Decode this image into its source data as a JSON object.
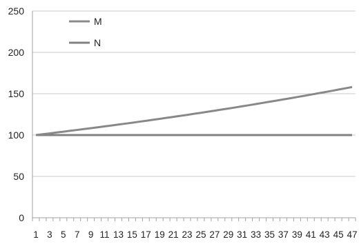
{
  "chart_data": {
    "type": "line",
    "title": "",
    "xlabel": "",
    "ylabel": "",
    "ylim": [
      0,
      250
    ],
    "y_ticks": [
      0,
      50,
      100,
      150,
      200,
      250
    ],
    "x_tick_labels": [
      "1",
      "3",
      "5",
      "7",
      "9",
      "11",
      "13",
      "15",
      "17",
      "19",
      "21",
      "23",
      "25",
      "27",
      "29",
      "31",
      "33",
      "35",
      "37",
      "39",
      "41",
      "43",
      "45",
      "47"
    ],
    "x": [
      1,
      2,
      3,
      4,
      5,
      6,
      7,
      8,
      9,
      10,
      11,
      12,
      13,
      14,
      15,
      16,
      17,
      18,
      19,
      20,
      21,
      22,
      23,
      24,
      25,
      26,
      27,
      28,
      29,
      30,
      31,
      32,
      33,
      34,
      35,
      36,
      37,
      38,
      39,
      40,
      41,
      42,
      43,
      44,
      45,
      46,
      47
    ],
    "grid": "horizontal",
    "legend_position": "top-left",
    "series": [
      {
        "name": "M",
        "color": "#888888",
        "values": [
          100.0,
          101.0,
          102.0,
          103.1,
          104.1,
          105.2,
          106.2,
          107.3,
          108.3,
          109.4,
          110.5,
          111.6,
          112.7,
          113.8,
          114.9,
          116.1,
          117.2,
          118.4,
          119.6,
          120.8,
          122.0,
          123.2,
          124.4,
          125.7,
          126.9,
          128.2,
          129.5,
          130.8,
          132.1,
          133.4,
          134.8,
          136.1,
          137.5,
          138.9,
          140.3,
          141.7,
          143.1,
          144.5,
          146.0,
          147.4,
          148.9,
          150.4,
          151.9,
          153.4,
          155.0,
          156.5,
          158.1
        ]
      },
      {
        "name": "N",
        "color": "#808080",
        "values": [
          100,
          100,
          100,
          100,
          100,
          100,
          100,
          100,
          100,
          100,
          100,
          100,
          100,
          100,
          100,
          100,
          100,
          100,
          100,
          100,
          100,
          100,
          100,
          100,
          100,
          100,
          100,
          100,
          100,
          100,
          100,
          100,
          100,
          100,
          100,
          100,
          100,
          100,
          100,
          100,
          100,
          100,
          100,
          100,
          100,
          100,
          100
        ]
      }
    ]
  }
}
